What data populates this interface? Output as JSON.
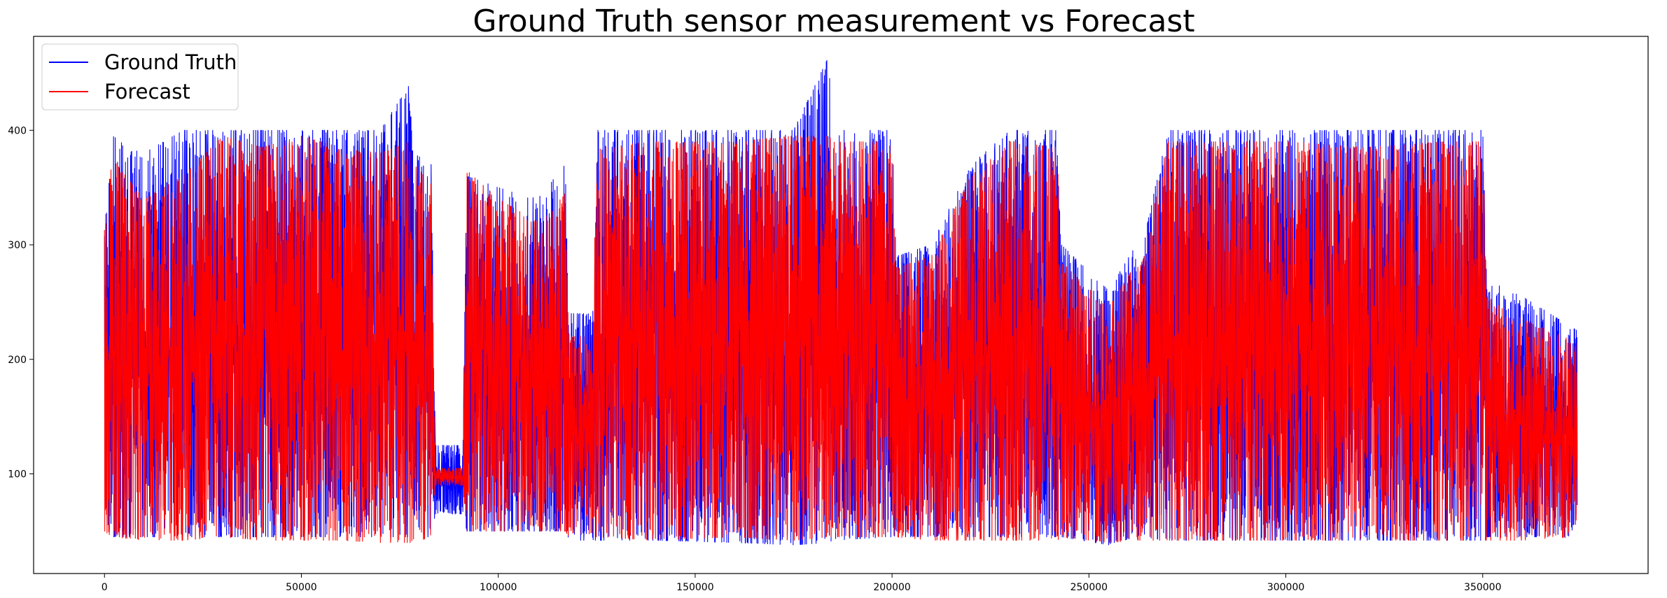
{
  "chart_data": {
    "type": "line",
    "title": "Ground Truth sensor measurement vs Forecast",
    "xlabel": "",
    "ylabel": "",
    "xlim": [
      -18000,
      392000
    ],
    "ylim": [
      13,
      482
    ],
    "xticks": [
      0,
      50000,
      100000,
      150000,
      200000,
      250000,
      300000,
      350000
    ],
    "xtick_labels": [
      "0",
      "50000",
      "100000",
      "150000",
      "200000",
      "250000",
      "300000",
      "350000"
    ],
    "yticks": [
      100,
      200,
      300,
      400
    ],
    "ytick_labels": [
      "100",
      "200",
      "300",
      "400"
    ],
    "grid": false,
    "legend": "top-left",
    "series": [
      {
        "name": "Ground Truth",
        "color": "#0000ff",
        "envelope": {
          "x": [
            0,
            2000,
            10000,
            20000,
            30000,
            40000,
            50000,
            60000,
            70000,
            77500,
            78500,
            83000,
            84000,
            91000,
            92000,
            100000,
            110000,
            117000,
            118000,
            124000,
            125000,
            140000,
            160000,
            175000,
            184000,
            185000,
            200000,
            201000,
            210000,
            220000,
            230000,
            242000,
            243000,
            255000,
            262000,
            263000,
            270000,
            280000,
            300000,
            320000,
            340000,
            350000,
            351000,
            360000,
            374000
          ],
          "high": [
            310,
            395,
            380,
            400,
            400,
            400,
            400,
            400,
            400,
            440,
            380,
            370,
            125,
            125,
            360,
            350,
            340,
            370,
            240,
            240,
            400,
            400,
            400,
            400,
            465,
            400,
            400,
            290,
            300,
            370,
            400,
            400,
            300,
            260,
            300,
            290,
            400,
            400,
            400,
            400,
            400,
            400,
            270,
            255,
            225
          ],
          "low": [
            60,
            45,
            45,
            45,
            45,
            45,
            45,
            45,
            45,
            45,
            45,
            45,
            65,
            65,
            50,
            50,
            50,
            50,
            42,
            42,
            42,
            42,
            40,
            38,
            40,
            42,
            45,
            45,
            45,
            45,
            45,
            45,
            45,
            38,
            45,
            45,
            42,
            42,
            42,
            42,
            42,
            42,
            45,
            45,
            45
          ]
        }
      },
      {
        "name": "Forecast",
        "color": "#ff0000",
        "envelope": {
          "x": [
            0,
            2000,
            10000,
            20000,
            30000,
            40000,
            50000,
            60000,
            70000,
            77500,
            78500,
            83000,
            84000,
            91000,
            92000,
            100000,
            110000,
            117000,
            118000,
            124000,
            125000,
            140000,
            160000,
            175000,
            184000,
            185000,
            200000,
            201000,
            210000,
            220000,
            230000,
            242000,
            243000,
            255000,
            262000,
            263000,
            270000,
            280000,
            300000,
            320000,
            340000,
            350000,
            351000,
            360000,
            374000
          ],
          "high": [
            320,
            375,
            340,
            360,
            395,
            385,
            395,
            385,
            380,
            390,
            370,
            355,
            105,
            105,
            365,
            340,
            320,
            345,
            220,
            220,
            385,
            390,
            390,
            395,
            395,
            390,
            390,
            280,
            290,
            360,
            390,
            385,
            285,
            245,
            285,
            280,
            390,
            390,
            390,
            385,
            390,
            390,
            255,
            235,
            215
          ],
          "low": [
            50,
            45,
            42,
            42,
            45,
            42,
            42,
            42,
            40,
            40,
            40,
            45,
            90,
            90,
            50,
            50,
            50,
            50,
            45,
            45,
            45,
            42,
            45,
            42,
            45,
            45,
            45,
            45,
            42,
            42,
            42,
            42,
            45,
            40,
            42,
            42,
            42,
            42,
            42,
            42,
            42,
            42,
            42,
            42,
            45
          ]
        }
      }
    ]
  }
}
